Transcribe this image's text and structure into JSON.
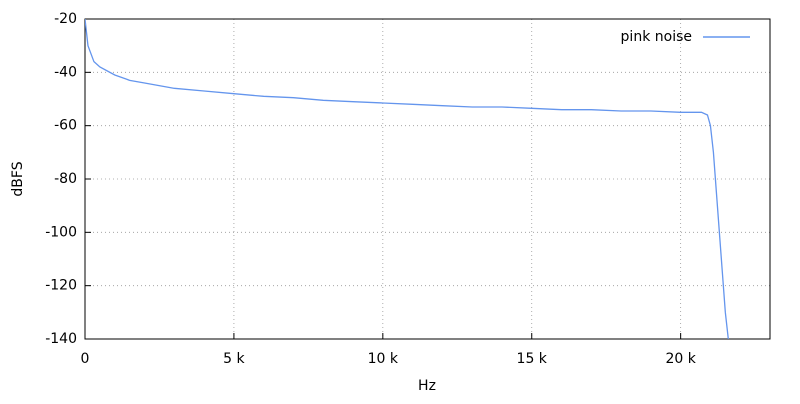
{
  "chart_data": {
    "type": "line",
    "x_label": "Hz",
    "y_label": "dBFS",
    "x": [
      0,
      100,
      300,
      500,
      1000,
      1500,
      2000,
      3000,
      4000,
      5000,
      6000,
      7000,
      8000,
      9000,
      10000,
      11000,
      12000,
      13000,
      14000,
      15000,
      16000,
      17000,
      18000,
      19000,
      20000,
      20700,
      20900,
      21000,
      21100,
      21200,
      21300,
      21400,
      21500,
      21600
    ],
    "series": [
      {
        "name": "pink noise",
        "color": "#6495ed",
        "values": [
          -20,
          -30,
          -36,
          -38,
          -41,
          -43,
          -44,
          -46,
          -47,
          -48,
          -49,
          -49.5,
          -50.5,
          -51,
          -51.5,
          -52,
          -52.5,
          -53,
          -53,
          -53.5,
          -54,
          -54,
          -54.5,
          -54.5,
          -55,
          -55,
          -56,
          -60,
          -70,
          -85,
          -100,
          -115,
          -130,
          -140
        ]
      }
    ],
    "xlim": [
      0,
      23000
    ],
    "xticks": [
      0,
      {
        "value": 5000,
        "label": "5 k"
      },
      {
        "value": 10000,
        "label": "10 k"
      },
      {
        "value": 15000,
        "label": "15 k"
      },
      {
        "value": 20000,
        "label": "20 k"
      }
    ],
    "ylim": [
      -140,
      -20
    ],
    "yticks": [
      -140,
      -120,
      -100,
      -80,
      -60,
      -40,
      -20
    ],
    "grid": true,
    "legend": "top-right"
  }
}
